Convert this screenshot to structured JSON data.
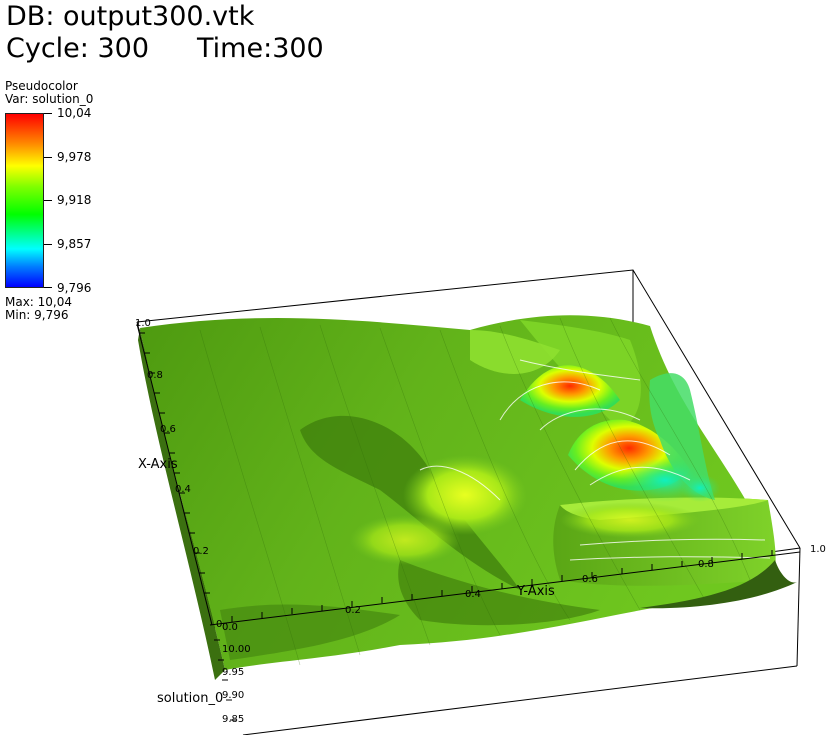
{
  "header": {
    "db_line": "DB: output300.vtk",
    "cycle_label": "Cycle: 300",
    "time_label": "Time:300"
  },
  "legend": {
    "plot_type": "Pseudocolor",
    "var_label": "Var: solution_0",
    "ticks": [
      "10,04",
      "9,978",
      "9,918",
      "9,857",
      "9,796"
    ],
    "max_label": "Max:  10,04",
    "min_label": "Min:  9,796"
  },
  "axes": {
    "x_title": "X-Axis",
    "y_title": "Y-Axis",
    "z_title": "solution_0",
    "x_ticks": [
      "0",
      "0.2",
      "0.4",
      "0.6",
      "0.8",
      "1.0"
    ],
    "y_ticks": [
      "0.0",
      "0.2",
      "0.4",
      "0.6",
      "0.8",
      "1.0"
    ],
    "z_ticks": [
      "10.00",
      "9.95",
      "9.90",
      "9.85"
    ]
  },
  "colors": {
    "colormap": [
      "#0000ff",
      "#00ffff",
      "#00ff00",
      "#ffff00",
      "#ff0000"
    ]
  }
}
